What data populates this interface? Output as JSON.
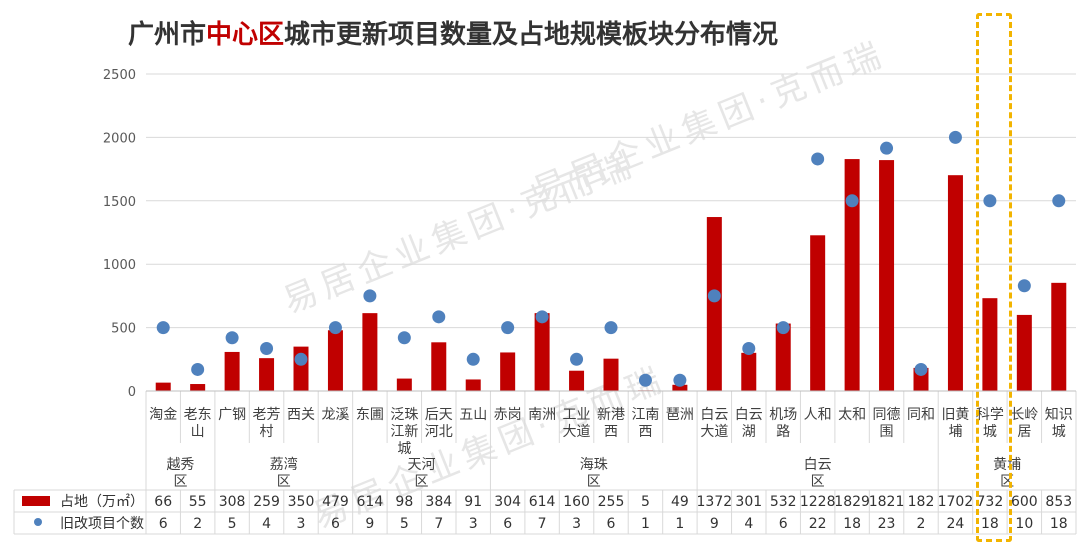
{
  "title": {
    "part1": "广州市",
    "highlight": "中心区",
    "part2": "城市更新项目数量及占地规模板块分布情况"
  },
  "watermark": {
    "brand": "易居企业集团·克而瑞"
  },
  "colors": {
    "bar": "#c00000",
    "dot": "#4f81bd",
    "grid": "#d9d9d9",
    "highlight_box": "#f2b400"
  },
  "chart_data": {
    "type": "bar",
    "title": "广州市中心区城市更新项目数量及占地规模板块分布情况",
    "ylim": [
      0,
      2500
    ],
    "yticks": [
      0,
      500,
      1000,
      1500,
      2000,
      2500
    ],
    "categories": [
      {
        "label": [
          "淘金"
        ],
        "district": "越秀区"
      },
      {
        "label": [
          "老东",
          "山"
        ],
        "district": "越秀区"
      },
      {
        "label": [
          "广钢"
        ],
        "district": "荔湾区"
      },
      {
        "label": [
          "老芳",
          "村"
        ],
        "district": "荔湾区"
      },
      {
        "label": [
          "西关"
        ],
        "district": "荔湾区"
      },
      {
        "label": [
          "龙溪"
        ],
        "district": "荔湾区"
      },
      {
        "label": [
          "东圃"
        ],
        "district": "天河区"
      },
      {
        "label": [
          "泛珠",
          "江新",
          "城"
        ],
        "district": "天河区"
      },
      {
        "label": [
          "后天",
          "河北"
        ],
        "district": "天河区"
      },
      {
        "label": [
          "五山"
        ],
        "district": "天河区"
      },
      {
        "label": [
          "赤岗"
        ],
        "district": "海珠区"
      },
      {
        "label": [
          "南洲"
        ],
        "district": "海珠区"
      },
      {
        "label": [
          "工业",
          "大道"
        ],
        "district": "海珠区"
      },
      {
        "label": [
          "新港",
          "西"
        ],
        "district": "海珠区"
      },
      {
        "label": [
          "江南",
          "西"
        ],
        "district": "海珠区"
      },
      {
        "label": [
          "琶洲"
        ],
        "district": "海珠区"
      },
      {
        "label": [
          "白云",
          "大道"
        ],
        "district": "白云区"
      },
      {
        "label": [
          "白云",
          "湖"
        ],
        "district": "白云区"
      },
      {
        "label": [
          "机场",
          "路"
        ],
        "district": "白云区"
      },
      {
        "label": [
          "人和"
        ],
        "district": "白云区"
      },
      {
        "label": [
          "太和"
        ],
        "district": "白云区"
      },
      {
        "label": [
          "同德",
          "围"
        ],
        "district": "白云区"
      },
      {
        "label": [
          "同和"
        ],
        "district": "白云区"
      },
      {
        "label": [
          "旧黄",
          "埔"
        ],
        "district": "黄埔区"
      },
      {
        "label": [
          "科学",
          "城"
        ],
        "district": "黄埔区"
      },
      {
        "label": [
          "长岭",
          "居"
        ],
        "district": "黄埔区"
      },
      {
        "label": [
          "知识",
          "城"
        ],
        "district": "黄埔区"
      }
    ],
    "groups": [
      {
        "label": [
          "越秀",
          "区"
        ],
        "count": 2
      },
      {
        "label": [
          "荔湾",
          "区"
        ],
        "count": 4
      },
      {
        "label": [
          "天河",
          "区"
        ],
        "count": 4
      },
      {
        "label": [
          "海珠",
          "区"
        ],
        "count": 6
      },
      {
        "label": [
          "白云",
          "区"
        ],
        "count": 7
      },
      {
        "label": [
          "黄埔",
          "区"
        ],
        "count": 4
      }
    ],
    "series": [
      {
        "name": "占地（万㎡）",
        "kind": "bar",
        "values": [
          66,
          55,
          308,
          259,
          350,
          479,
          614,
          98,
          384,
          91,
          304,
          614,
          160,
          255,
          5,
          49,
          1372,
          301,
          532,
          1228,
          1829,
          1821,
          182,
          1702,
          732,
          600,
          853
        ]
      },
      {
        "name": "旧改项目个数",
        "kind": "dot",
        "values": [
          6,
          2,
          5,
          4,
          3,
          6,
          9,
          5,
          7,
          3,
          6,
          7,
          3,
          6,
          1,
          1,
          9,
          4,
          6,
          22,
          18,
          23,
          2,
          24,
          18,
          10,
          18
        ],
        "plotted_y": [
          500,
          170,
          420,
          335,
          250,
          500,
          750,
          420,
          585,
          250,
          500,
          585,
          250,
          500,
          85,
          85,
          750,
          335,
          500,
          1830,
          1500,
          1915,
          170,
          2000,
          1500,
          830,
          1500
        ]
      }
    ],
    "highlight_category": "科学城"
  }
}
